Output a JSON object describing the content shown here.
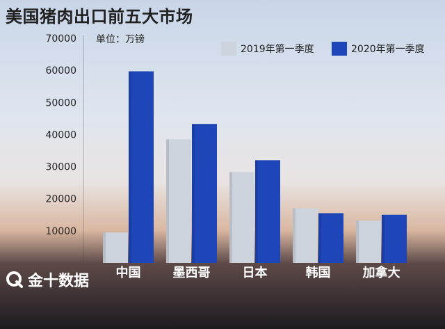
{
  "title": "美国猪肉出口前五大市场",
  "unit_label": "单位：万镑",
  "brand": {
    "name": "金十数据",
    "icon": "q-ring-logo-icon"
  },
  "colors": {
    "series_2019": "#cdd3dd",
    "series_2020": "#1f46b8",
    "axis_text": "#222222",
    "category_text": "#ffffff"
  },
  "chart_data": {
    "type": "bar",
    "title": "美国猪肉出口前五大市场",
    "ylabel": "单位：万镑",
    "xlabel": "",
    "ylim": [
      0,
      70000
    ],
    "yticks": [
      10000,
      20000,
      30000,
      40000,
      50000,
      60000,
      70000
    ],
    "categories": [
      "中国",
      "墨西哥",
      "日本",
      "韩国",
      "加拿大"
    ],
    "series": [
      {
        "name": "2019年第一季度",
        "values": [
          9500,
          38500,
          28300,
          17000,
          13200
        ]
      },
      {
        "name": "2020年第一季度",
        "values": [
          59700,
          43300,
          32000,
          15500,
          15000
        ]
      }
    ],
    "legend": "top-right",
    "grid": false
  }
}
